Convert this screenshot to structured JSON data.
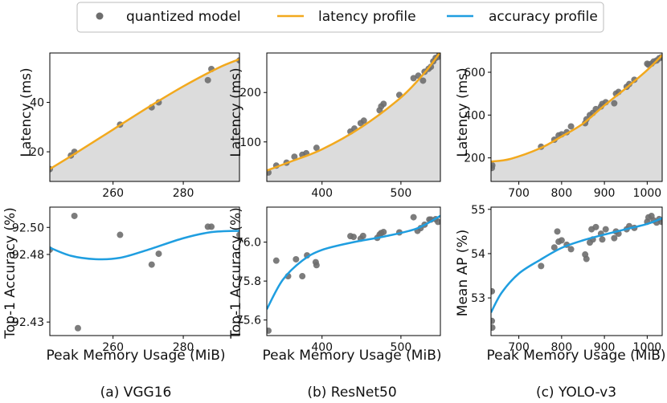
{
  "legend": {
    "items": [
      {
        "label": "quantized model",
        "kind": "point",
        "color": "#6e6e6e"
      },
      {
        "label": "latency profile",
        "kind": "line",
        "color": "#f2a91e"
      },
      {
        "label": "accuracy profile",
        "kind": "line",
        "color": "#1f9ee0"
      }
    ]
  },
  "captions": [
    "(a) VGG16",
    "(b) ResNet50",
    "(c) YOLO-v3"
  ],
  "labels": {
    "x_common": "Peak Memory Usage (MiB)",
    "latency_y": "Latency (ms)",
    "acc_y": [
      "Top-1 Accuracy (%)",
      "Top-1 Accuracy (%)",
      "Mean AP (%)"
    ]
  },
  "chart_data": [
    {
      "type": "scatter",
      "panel": "VGG16 latency",
      "xlabel": "",
      "ylabel": "Latency (ms)",
      "xlim": [
        242,
        296
      ],
      "ylim": [
        8,
        60
      ],
      "xticks": [
        260,
        280
      ],
      "yticks": [
        20,
        40
      ],
      "fill_below_profile": true,
      "points": [
        [
          242,
          13
        ],
        [
          248,
          18.5
        ],
        [
          249,
          20
        ],
        [
          262,
          31
        ],
        [
          271,
          38
        ],
        [
          273,
          40
        ],
        [
          287,
          49
        ],
        [
          288,
          53.5
        ],
        [
          296,
          57
        ]
      ],
      "profile": [
        [
          242,
          13
        ],
        [
          250,
          20
        ],
        [
          260,
          29
        ],
        [
          270,
          38
        ],
        [
          280,
          46.5
        ],
        [
          290,
          54
        ],
        [
          296,
          57.5
        ]
      ]
    },
    {
      "type": "scatter",
      "panel": "ResNet50 latency",
      "xlabel": "",
      "ylabel": "Latency (ms)",
      "xlim": [
        330,
        550
      ],
      "ylim": [
        20,
        280
      ],
      "xticks": [
        400,
        500
      ],
      "yticks": [
        100,
        200
      ],
      "fill_below_profile": true,
      "points": [
        [
          332,
          38
        ],
        [
          342,
          52
        ],
        [
          355,
          58
        ],
        [
          365,
          70
        ],
        [
          375,
          74
        ],
        [
          380,
          77
        ],
        [
          393,
          88
        ],
        [
          436,
          121
        ],
        [
          441,
          127
        ],
        [
          449,
          138
        ],
        [
          453,
          143
        ],
        [
          473,
          164
        ],
        [
          475,
          172
        ],
        [
          478,
          177
        ],
        [
          498,
          195
        ],
        [
          516,
          229
        ],
        [
          522,
          234
        ],
        [
          528,
          224
        ],
        [
          530,
          242
        ],
        [
          535,
          248
        ],
        [
          538,
          252
        ],
        [
          541,
          263
        ],
        [
          544,
          270
        ],
        [
          547,
          272
        ],
        [
          549,
          277
        ]
      ],
      "profile": [
        [
          330,
          42
        ],
        [
          360,
          60
        ],
        [
          400,
          85
        ],
        [
          450,
          130
        ],
        [
          500,
          190
        ],
        [
          530,
          240
        ],
        [
          550,
          282
        ]
      ]
    },
    {
      "type": "scatter",
      "panel": "YOLO-v3 latency",
      "xlabel": "",
      "ylabel": "Latency (ms)",
      "xlim": [
        635,
        1035
      ],
      "ylim": [
        90,
        690
      ],
      "xticks": [
        700,
        800,
        900,
        1000
      ],
      "yticks": [
        200,
        400,
        600
      ],
      "fill_below_profile": true,
      "points": [
        [
          637,
          153
        ],
        [
          638,
          165
        ],
        [
          752,
          252
        ],
        [
          783,
          285
        ],
        [
          793,
          305
        ],
        [
          800,
          310
        ],
        [
          812,
          320
        ],
        [
          822,
          347
        ],
        [
          855,
          362
        ],
        [
          858,
          380
        ],
        [
          866,
          400
        ],
        [
          873,
          410
        ],
        [
          880,
          428
        ],
        [
          892,
          440
        ],
        [
          895,
          452
        ],
        [
          903,
          460
        ],
        [
          923,
          455
        ],
        [
          927,
          500
        ],
        [
          933,
          508
        ],
        [
          952,
          532
        ],
        [
          958,
          545
        ],
        [
          970,
          565
        ],
        [
          1000,
          640
        ],
        [
          1003,
          635
        ],
        [
          1010,
          640
        ],
        [
          1015,
          650
        ],
        [
          1022,
          655
        ],
        [
          1028,
          665
        ],
        [
          1033,
          670
        ]
      ],
      "profile": [
        [
          635,
          183
        ],
        [
          680,
          195
        ],
        [
          750,
          245
        ],
        [
          800,
          300
        ],
        [
          850,
          360
        ],
        [
          900,
          445
        ],
        [
          950,
          525
        ],
        [
          1000,
          610
        ],
        [
          1035,
          680
        ]
      ]
    },
    {
      "type": "scatter",
      "panel": "VGG16 accuracy",
      "xlabel": "Peak Memory Usage (MiB)",
      "ylabel": "Top-1 Accuracy (%)",
      "xlim": [
        242,
        296
      ],
      "ylim": [
        92.42,
        92.515
      ],
      "xticks": [
        260,
        280
      ],
      "yticks": [
        92.43,
        92.48,
        92.5
      ],
      "ytick_labels": [
        "92.43",
        "92.48",
        "92.50"
      ],
      "fill_below_profile": false,
      "points": [
        [
          242,
          92.4835
        ],
        [
          249,
          92.5085
        ],
        [
          250,
          92.4255
        ],
        [
          262,
          92.4945
        ],
        [
          271,
          92.4725
        ],
        [
          273,
          92.4805
        ],
        [
          287,
          92.5005
        ],
        [
          288,
          92.5005
        ],
        [
          296,
          92.4945
        ]
      ],
      "profile": [
        [
          242,
          92.485
        ],
        [
          248,
          92.479
        ],
        [
          255,
          92.4765
        ],
        [
          262,
          92.4775
        ],
        [
          270,
          92.4835
        ],
        [
          280,
          92.492
        ],
        [
          288,
          92.4965
        ],
        [
          296,
          92.4975
        ]
      ]
    },
    {
      "type": "scatter",
      "panel": "ResNet50 accuracy",
      "xlabel": "Peak Memory Usage (MiB)",
      "ylabel": "Top-1 Accuracy (%)",
      "xlim": [
        330,
        550
      ],
      "ylim": [
        75.52,
        76.18
      ],
      "xticks": [
        400,
        500
      ],
      "yticks": [
        75.6,
        75.8,
        76.0
      ],
      "ytick_labels": [
        "75.6",
        "75.8",
        "76.0"
      ],
      "fill_below_profile": false,
      "points": [
        [
          332,
          75.545
        ],
        [
          342,
          75.905
        ],
        [
          357,
          75.825
        ],
        [
          367,
          75.912
        ],
        [
          375,
          75.825
        ],
        [
          381,
          75.932
        ],
        [
          392,
          75.897
        ],
        [
          393,
          75.882
        ],
        [
          436,
          76.031
        ],
        [
          440,
          76.027
        ],
        [
          449,
          76.018
        ],
        [
          452,
          76.032
        ],
        [
          470,
          76.022
        ],
        [
          473,
          76.039
        ],
        [
          475,
          76.047
        ],
        [
          478,
          76.052
        ],
        [
          498,
          76.05
        ],
        [
          516,
          76.128
        ],
        [
          521,
          76.058
        ],
        [
          525,
          76.072
        ],
        [
          530,
          76.09
        ],
        [
          536,
          76.116
        ],
        [
          538,
          76.116
        ],
        [
          544,
          76.118
        ],
        [
          547,
          76.104
        ]
      ],
      "profile": [
        [
          330,
          75.655
        ],
        [
          350,
          75.805
        ],
        [
          375,
          75.905
        ],
        [
          400,
          75.96
        ],
        [
          440,
          76.0
        ],
        [
          480,
          76.03
        ],
        [
          520,
          76.07
        ],
        [
          550,
          76.135
        ]
      ]
    },
    {
      "type": "scatter",
      "panel": "YOLO-v3 accuracy",
      "xlabel": "Peak Memory Usage (MiB)",
      "ylabel": "Mean AP (%)",
      "xlim": [
        635,
        1035
      ],
      "ylim": [
        52.15,
        55.05
      ],
      "xticks": [
        700,
        800,
        900,
        1000
      ],
      "yticks": [
        53,
        54,
        55
      ],
      "fill_below_profile": false,
      "points": [
        [
          637,
          53.15
        ],
        [
          637,
          52.48
        ],
        [
          638,
          52.33
        ],
        [
          752,
          53.72
        ],
        [
          783,
          54.14
        ],
        [
          790,
          54.5
        ],
        [
          793,
          54.27
        ],
        [
          800,
          54.3
        ],
        [
          812,
          54.2
        ],
        [
          822,
          54.1
        ],
        [
          855,
          53.98
        ],
        [
          858,
          53.88
        ],
        [
          866,
          54.25
        ],
        [
          870,
          54.55
        ],
        [
          873,
          54.32
        ],
        [
          880,
          54.6
        ],
        [
          892,
          54.45
        ],
        [
          895,
          54.32
        ],
        [
          903,
          54.55
        ],
        [
          923,
          54.35
        ],
        [
          927,
          54.5
        ],
        [
          933,
          54.45
        ],
        [
          952,
          54.55
        ],
        [
          958,
          54.62
        ],
        [
          970,
          54.58
        ],
        [
          1000,
          54.72
        ],
        [
          1003,
          54.82
        ],
        [
          1010,
          54.85
        ],
        [
          1015,
          54.75
        ],
        [
          1022,
          54.7
        ],
        [
          1028,
          54.78
        ],
        [
          1033,
          54.72
        ]
      ],
      "profile": [
        [
          635,
          52.67
        ],
        [
          660,
          53.12
        ],
        [
          700,
          53.55
        ],
        [
          750,
          53.86
        ],
        [
          800,
          54.13
        ],
        [
          850,
          54.3
        ],
        [
          900,
          54.43
        ],
        [
          950,
          54.55
        ],
        [
          1000,
          54.67
        ],
        [
          1035,
          54.8
        ]
      ]
    }
  ]
}
